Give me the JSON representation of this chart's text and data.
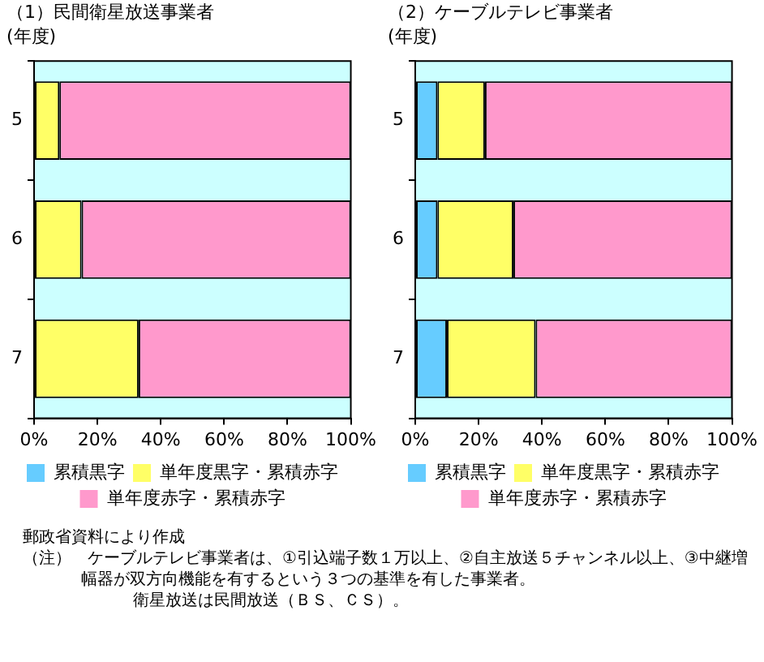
{
  "chart_data": [
    {
      "type": "bar",
      "title": "（1）民間衛星放送事業者",
      "ylabel": "(年度)",
      "orientation": "horizontal",
      "stacked": true,
      "categories": [
        "5",
        "6",
        "7"
      ],
      "series": [
        {
          "name": "累積黒字",
          "color": "#66ccff",
          "values": [
            0,
            0,
            0
          ]
        },
        {
          "name": "単年度黒字・累積赤字",
          "color": "#ffff66",
          "values": [
            8,
            15,
            33
          ]
        },
        {
          "name": "単年度赤字・累積赤字",
          "color": "#ff99cc",
          "values": [
            92,
            85,
            67
          ]
        }
      ],
      "xlim": [
        0,
        100
      ],
      "xticks": [
        {
          "value": 0,
          "label": "0%"
        },
        {
          "value": 20,
          "label": "20%"
        },
        {
          "value": 40,
          "label": "40%"
        },
        {
          "value": 60,
          "label": "60%"
        },
        {
          "value": 80,
          "label": "80%"
        },
        {
          "value": 100,
          "label": "100%"
        }
      ],
      "bands": [
        {
          "axis": "x",
          "from": 0,
          "to": 100,
          "color": "#ccffff"
        }
      ],
      "grid": false,
      "legend": "bottom"
    },
    {
      "type": "bar",
      "title": "（2）ケーブルテレビ事業者",
      "ylabel": "(年度)",
      "orientation": "horizontal",
      "stacked": true,
      "categories": [
        "5",
        "6",
        "7"
      ],
      "series": [
        {
          "name": "累積黒字",
          "color": "#66ccff",
          "values": [
            7,
            7,
            10
          ]
        },
        {
          "name": "単年度黒字・累積赤字",
          "color": "#ffff66",
          "values": [
            15,
            24,
            28
          ]
        },
        {
          "name": "単年度赤字・累積赤字",
          "color": "#ff99cc",
          "values": [
            78,
            69,
            62
          ]
        }
      ],
      "xlim": [
        0,
        100
      ],
      "xticks": [
        {
          "value": 0,
          "label": "0%"
        },
        {
          "value": 20,
          "label": "20%"
        },
        {
          "value": 40,
          "label": "40%"
        },
        {
          "value": 60,
          "label": "60%"
        },
        {
          "value": 80,
          "label": "80%"
        },
        {
          "value": 100,
          "label": "100%"
        }
      ],
      "bands": [
        {
          "axis": "x",
          "from": 0,
          "to": 100,
          "color": "#ccffff"
        }
      ],
      "grid": false,
      "legend": "bottom",
      "annotations": [
        "郵政省資料により作成",
        "（注）　ケーブルテレビ事業者は、①引込端子数１万以上、②自主放送５チャンネル以上、③中継増幅器が双方向機能を有するという３つの基準を有した事業者。",
        "衛星放送は民間放送（ＢＳ、ＣＳ）。"
      ]
    }
  ]
}
